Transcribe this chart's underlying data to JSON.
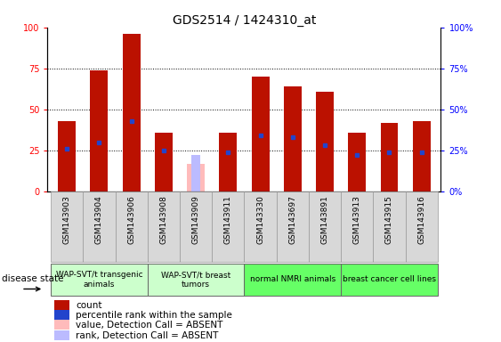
{
  "title": "GDS2514 / 1424310_at",
  "samples": [
    "GSM143903",
    "GSM143904",
    "GSM143906",
    "GSM143908",
    "GSM143909",
    "GSM143911",
    "GSM143330",
    "GSM143697",
    "GSM143891",
    "GSM143913",
    "GSM143915",
    "GSM143916"
  ],
  "count_values": [
    43,
    74,
    96,
    36,
    0,
    36,
    70,
    64,
    61,
    36,
    42,
    43
  ],
  "percentile_values": [
    26,
    30,
    43,
    25,
    0,
    24,
    34,
    33,
    28,
    22,
    24,
    24
  ],
  "absent_value_bar": [
    0,
    0,
    0,
    0,
    17,
    0,
    0,
    0,
    0,
    0,
    0,
    0
  ],
  "absent_rank_bar": [
    0,
    0,
    0,
    0,
    22,
    0,
    0,
    0,
    0,
    0,
    0,
    0
  ],
  "absent_flags": [
    false,
    false,
    false,
    false,
    true,
    false,
    false,
    false,
    false,
    false,
    false,
    false
  ],
  "groups": [
    {
      "label": "WAP-SVT/t transgenic\nanimals",
      "indices": [
        0,
        1,
        2
      ],
      "color": "#ccffcc"
    },
    {
      "label": "WAP-SVT/t breast\ntumors",
      "indices": [
        3,
        4,
        5
      ],
      "color": "#ccffcc"
    },
    {
      "label": "normal NMRI animals",
      "indices": [
        6,
        7,
        8
      ],
      "color": "#66ff66"
    },
    {
      "label": "breast cancer cell lines",
      "indices": [
        9,
        10,
        11
      ],
      "color": "#66ff66"
    }
  ],
  "bar_color": "#bb1100",
  "absent_value_color": "#ffbbbb",
  "absent_rank_color": "#bbbbff",
  "percentile_color": "#2244cc",
  "ylim": [
    0,
    100
  ],
  "yticks": [
    0,
    25,
    50,
    75,
    100
  ],
  "title_fontsize": 10,
  "tick_fontsize": 7,
  "legend_fontsize": 7.5,
  "group_fontsize": 6.5,
  "sample_fontsize": 6.5
}
